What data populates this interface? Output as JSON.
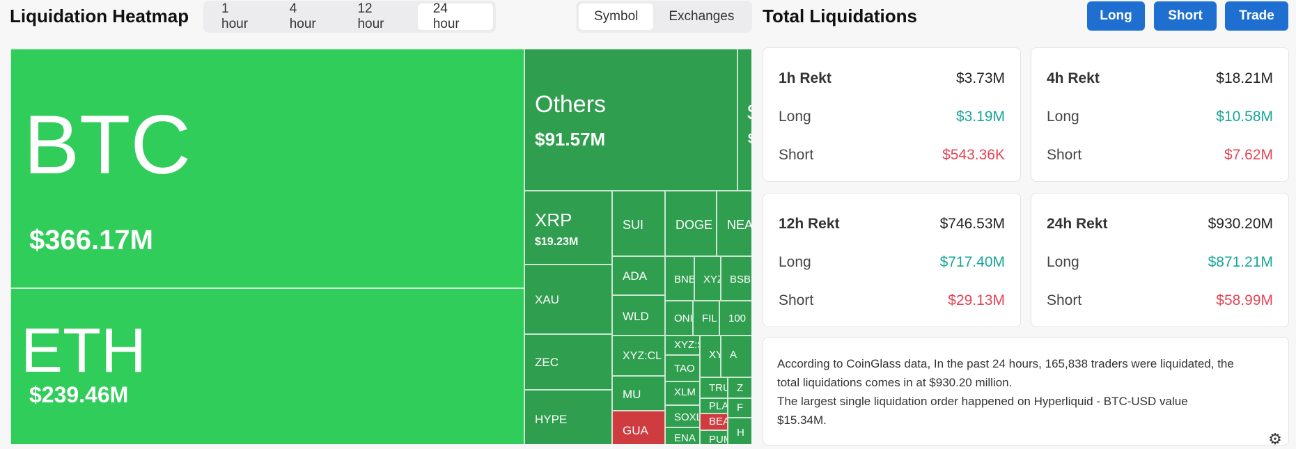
{
  "heatmap": {
    "title": "Liquidation Heatmap",
    "time_tabs": [
      "1 hour",
      "4 hour",
      "12 hour",
      "24 hour"
    ],
    "active_time_tab": "24 hour",
    "mode_tabs": [
      "Symbol",
      "Exchanges"
    ],
    "active_mode_tab": "Symbol",
    "colors": {
      "bright_green": "#30cd5a",
      "mid_green": "#2f9e4e",
      "red": "#cf3c40"
    },
    "cells": [
      {
        "symbol": "BTC",
        "value": "$366.17M",
        "color": "bright_green"
      },
      {
        "symbol": "ETH",
        "value": "$239.46M",
        "color": "bright_green"
      },
      {
        "symbol": "Others",
        "value": "$91.57M",
        "color": "mid_green"
      },
      {
        "symbol": "S",
        "value": "$",
        "color": "mid_green"
      },
      {
        "symbol": "XRP",
        "value": "$19.23M",
        "color": "mid_green"
      },
      {
        "symbol": "SUI",
        "value": "",
        "color": "mid_green"
      },
      {
        "symbol": "DOGE",
        "value": "",
        "color": "mid_green"
      },
      {
        "symbol": "NEAR",
        "value": "",
        "color": "mid_green"
      },
      {
        "symbol": "XAU",
        "value": "",
        "color": "mid_green"
      },
      {
        "symbol": "ADA",
        "value": "",
        "color": "mid_green"
      },
      {
        "symbol": "BNB",
        "value": "",
        "color": "mid_green"
      },
      {
        "symbol": "XYZ",
        "value": "",
        "color": "mid_green"
      },
      {
        "symbol": "BSB",
        "value": "",
        "color": "mid_green"
      },
      {
        "symbol": "WLD",
        "value": "",
        "color": "mid_green"
      },
      {
        "symbol": "ONI",
        "value": "",
        "color": "mid_green"
      },
      {
        "symbol": "FIL",
        "value": "",
        "color": "mid_green"
      },
      {
        "symbol": "100",
        "value": "",
        "color": "mid_green"
      },
      {
        "symbol": "ZEC",
        "value": "",
        "color": "mid_green"
      },
      {
        "symbol": "XYZ:CL",
        "value": "",
        "color": "mid_green"
      },
      {
        "symbol": "XYZ:S",
        "value": "",
        "color": "mid_green"
      },
      {
        "symbol": "XY",
        "value": "",
        "color": "mid_green"
      },
      {
        "symbol": "A",
        "value": "",
        "color": "mid_green"
      },
      {
        "symbol": "TAO",
        "value": "",
        "color": "mid_green"
      },
      {
        "symbol": "MU",
        "value": "",
        "color": "mid_green"
      },
      {
        "symbol": "XLM",
        "value": "",
        "color": "mid_green"
      },
      {
        "symbol": "TRU",
        "value": "",
        "color": "mid_green"
      },
      {
        "symbol": "Z",
        "value": "",
        "color": "mid_green"
      },
      {
        "symbol": "HYPE",
        "value": "",
        "color": "mid_green"
      },
      {
        "symbol": "SOXL",
        "value": "",
        "color": "mid_green"
      },
      {
        "symbol": "PLAY",
        "value": "",
        "color": "mid_green"
      },
      {
        "symbol": "F",
        "value": "",
        "color": "mid_green"
      },
      {
        "symbol": "GUA",
        "value": "",
        "color": "red"
      },
      {
        "symbol": "ENA",
        "value": "",
        "color": "mid_green"
      },
      {
        "symbol": "BEA",
        "value": "",
        "color": "red"
      },
      {
        "symbol": "PUM",
        "value": "",
        "color": "mid_green"
      },
      {
        "symbol": "H",
        "value": "",
        "color": "mid_green"
      }
    ]
  },
  "total": {
    "title": "Total Liquidations",
    "buttons": [
      "Long",
      "Short",
      "Trade"
    ],
    "cards": [
      {
        "period": "1h Rekt",
        "total": "$3.73M",
        "long_label": "Long",
        "long": "$3.19M",
        "short_label": "Short",
        "short": "$543.36K"
      },
      {
        "period": "4h Rekt",
        "total": "$18.21M",
        "long_label": "Long",
        "long": "$10.58M",
        "short_label": "Short",
        "short": "$7.62M"
      },
      {
        "period": "12h Rekt",
        "total": "$746.53M",
        "long_label": "Long",
        "long": "$717.40M",
        "short_label": "Short",
        "short": "$29.13M"
      },
      {
        "period": "24h Rekt",
        "total": "$930.20M",
        "long_label": "Long",
        "long": "$871.21M",
        "short_label": "Short",
        "short": "$58.99M"
      }
    ],
    "summary": [
      "According to CoinGlass data, In the past 24 hours, 165,838 traders were liquidated, the",
      "total liquidations comes in at $930.20 million.",
      "The largest single liquidation order happened on Hyperliquid - BTC-USD value",
      "$15.34M."
    ]
  },
  "icons": {
    "settings": "gear-icon"
  }
}
